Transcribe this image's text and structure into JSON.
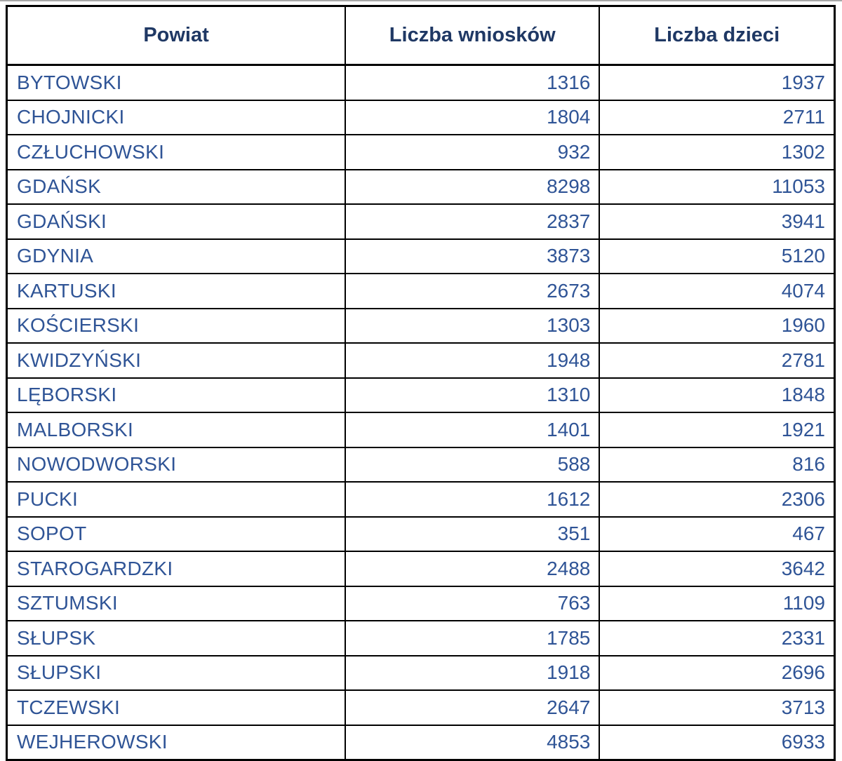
{
  "colors": {
    "header_text": "#1f3864",
    "body_text": "#2f5496",
    "grid_line": "#000000",
    "top_rule": "#a8a8a8",
    "background": "#ffffff"
  },
  "table": {
    "columns": [
      {
        "key": "powiat",
        "label": "Powiat",
        "align": "left"
      },
      {
        "key": "wnioski",
        "label": "Liczba wniosków",
        "align": "right"
      },
      {
        "key": "dzieci",
        "label": "Liczba dzieci",
        "align": "right"
      }
    ],
    "rows": [
      {
        "powiat": "BYTOWSKI",
        "wnioski": "1316",
        "dzieci": "1937"
      },
      {
        "powiat": "CHOJNICKI",
        "wnioski": "1804",
        "dzieci": "2711"
      },
      {
        "powiat": "CZŁUCHOWSKI",
        "wnioski": "932",
        "dzieci": "1302"
      },
      {
        "powiat": "GDAŃSK",
        "wnioski": "8298",
        "dzieci": "11053"
      },
      {
        "powiat": "GDAŃSKI",
        "wnioski": "2837",
        "dzieci": "3941"
      },
      {
        "powiat": "GDYNIA",
        "wnioski": "3873",
        "dzieci": "5120"
      },
      {
        "powiat": "KARTUSKI",
        "wnioski": "2673",
        "dzieci": "4074"
      },
      {
        "powiat": "KOŚCIERSKI",
        "wnioski": "1303",
        "dzieci": "1960"
      },
      {
        "powiat": "KWIDZYŃSKI",
        "wnioski": "1948",
        "dzieci": "2781"
      },
      {
        "powiat": "LĘBORSKI",
        "wnioski": "1310",
        "dzieci": "1848"
      },
      {
        "powiat": "MALBORSKI",
        "wnioski": "1401",
        "dzieci": "1921"
      },
      {
        "powiat": "NOWODWORSKI",
        "wnioski": "588",
        "dzieci": "816"
      },
      {
        "powiat": "PUCKI",
        "wnioski": "1612",
        "dzieci": "2306"
      },
      {
        "powiat": "SOPOT",
        "wnioski": "351",
        "dzieci": "467"
      },
      {
        "powiat": "STAROGARDZKI",
        "wnioski": "2488",
        "dzieci": "3642"
      },
      {
        "powiat": "SZTUMSKI",
        "wnioski": "763",
        "dzieci": "1109"
      },
      {
        "powiat": "SŁUPSK",
        "wnioski": "1785",
        "dzieci": "2331"
      },
      {
        "powiat": "SŁUPSKI",
        "wnioski": "1918",
        "dzieci": "2696"
      },
      {
        "powiat": "TCZEWSKI",
        "wnioski": "2647",
        "dzieci": "3713"
      },
      {
        "powiat": "WEJHEROWSKI",
        "wnioski": "4853",
        "dzieci": "6933"
      }
    ]
  },
  "chart_data": {
    "type": "table",
    "title": "",
    "columns": [
      "Powiat",
      "Liczba wniosków",
      "Liczba dzieci"
    ],
    "rows": [
      [
        "BYTOWSKI",
        1316,
        1937
      ],
      [
        "CHOJNICKI",
        1804,
        2711
      ],
      [
        "CZŁUCHOWSKI",
        932,
        1302
      ],
      [
        "GDAŃSK",
        8298,
        11053
      ],
      [
        "GDAŃSKI",
        2837,
        3941
      ],
      [
        "GDYNIA",
        3873,
        5120
      ],
      [
        "KARTUSKI",
        2673,
        4074
      ],
      [
        "KOŚCIERSKI",
        1303,
        1960
      ],
      [
        "KWIDZYŃSKI",
        1948,
        2781
      ],
      [
        "LĘBORSKI",
        1310,
        1848
      ],
      [
        "MALBORSKI",
        1401,
        1921
      ],
      [
        "NOWODWORSKI",
        588,
        816
      ],
      [
        "PUCKI",
        1612,
        2306
      ],
      [
        "SOPOT",
        351,
        467
      ],
      [
        "STAROGARDZKI",
        2488,
        3642
      ],
      [
        "SZTUMSKI",
        763,
        1109
      ],
      [
        "SŁUPSK",
        1785,
        2331
      ],
      [
        "SŁUPSKI",
        1918,
        2696
      ],
      [
        "TCZEWSKI",
        2647,
        3713
      ],
      [
        "WEJHEROWSKI",
        4853,
        6933
      ]
    ]
  }
}
